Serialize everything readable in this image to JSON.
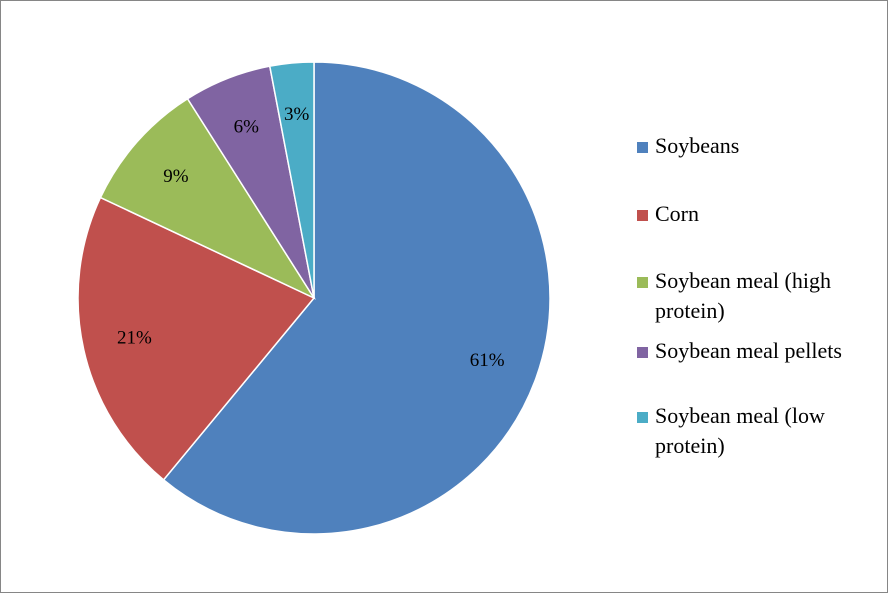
{
  "chart_data": {
    "type": "pie",
    "categories": [
      "Soybeans",
      "Corn",
      "Soybean meal (high protein)",
      "Soybean meal pellets",
      "Soybean meal (low protein)"
    ],
    "values": [
      61,
      21,
      9,
      6,
      3
    ],
    "data_labels": [
      "61%",
      "21%",
      "9%",
      "6%",
      "3%"
    ],
    "colors": [
      "#4F81BD",
      "#C0504D",
      "#9BBB59",
      "#8064A2",
      "#4BACC6"
    ],
    "start_angle_deg": 0,
    "direction": "clockwise",
    "legend_position": "right",
    "title": ""
  }
}
